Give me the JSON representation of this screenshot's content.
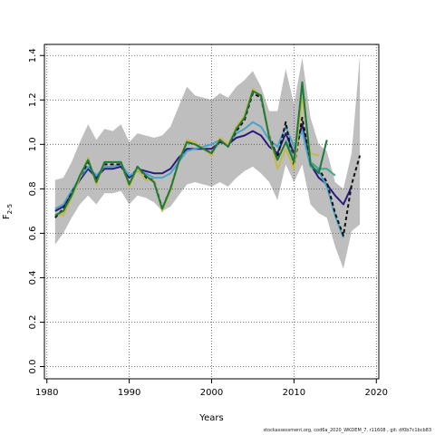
{
  "chart_data": {
    "type": "line",
    "title": "",
    "xlabel": "Years",
    "ylabel_main": "F",
    "ylabel_sub": "2-5",
    "xlim": [
      1980,
      2020
    ],
    "ylim": [
      0,
      1.4
    ],
    "xticks": [
      1980,
      1990,
      2000,
      2010,
      2020
    ],
    "yticks": [
      "0.0",
      "0.2",
      "0.4",
      "0.6",
      "0.8",
      "1.0",
      "1.2",
      "1.4"
    ],
    "grid": "dotted",
    "band": {
      "x": [
        1981,
        1982,
        1983,
        1984,
        1985,
        1986,
        1987,
        1988,
        1989,
        1990,
        1991,
        1992,
        1993,
        1994,
        1995,
        1996,
        1997,
        1998,
        1999,
        2000,
        2001,
        2002,
        2003,
        2004,
        2005,
        2006,
        2007,
        2008,
        2009,
        2010,
        2011,
        2012,
        2013,
        2014,
        2015,
        2016,
        2017,
        2018
      ],
      "upper": [
        0.84,
        0.85,
        0.92,
        1.01,
        1.09,
        1.02,
        1.07,
        1.06,
        1.09,
        1.01,
        1.05,
        1.04,
        1.03,
        1.04,
        1.08,
        1.17,
        1.26,
        1.22,
        1.21,
        1.2,
        1.23,
        1.21,
        1.26,
        1.29,
        1.33,
        1.26,
        1.15,
        1.15,
        1.34,
        1.18,
        1.39,
        1.12,
        1.0,
        0.97,
        0.83,
        0.8,
        0.96,
        1.4
      ],
      "lower": [
        0.55,
        0.6,
        0.67,
        0.73,
        0.77,
        0.73,
        0.78,
        0.78,
        0.79,
        0.73,
        0.77,
        0.76,
        0.74,
        0.7,
        0.72,
        0.77,
        0.82,
        0.83,
        0.82,
        0.81,
        0.83,
        0.81,
        0.85,
        0.88,
        0.9,
        0.87,
        0.83,
        0.75,
        0.91,
        0.83,
        0.91,
        0.73,
        0.69,
        0.67,
        0.54,
        0.44,
        0.61,
        0.64
      ]
    },
    "series": [
      {
        "color": "#2b1b80",
        "dash": "",
        "x": [
          1981,
          1982,
          1983,
          1984,
          1985,
          1986,
          1987,
          1988,
          1989,
          1990,
          1991,
          1992,
          1993,
          1994,
          1995,
          1996,
          1997,
          1998,
          1999,
          2000,
          2001,
          2002,
          2003,
          2004,
          2005,
          2006,
          2007,
          2008,
          2009,
          2010,
          2011,
          2012,
          2013,
          2014,
          2015,
          2016,
          2017
        ],
        "y": [
          0.7,
          0.72,
          0.78,
          0.84,
          0.89,
          0.85,
          0.89,
          0.89,
          0.9,
          0.85,
          0.89,
          0.88,
          0.87,
          0.87,
          0.89,
          0.94,
          0.98,
          0.98,
          0.98,
          0.98,
          1.01,
          1.0,
          1.03,
          1.04,
          1.06,
          1.04,
          0.99,
          0.96,
          1.05,
          0.96,
          1.09,
          0.91,
          0.85,
          0.82,
          0.77,
          0.73,
          0.81
        ]
      },
      {
        "color": "#4aa3c8",
        "dash": "",
        "x": [
          1981,
          1982,
          1983,
          1984,
          1985,
          1986,
          1987,
          1988,
          1989,
          1990,
          1991,
          1992,
          1993,
          1994,
          1995,
          1996,
          1997,
          1998,
          1999,
          2000,
          2001,
          2002,
          2003,
          2004,
          2005,
          2006,
          2007,
          2008,
          2009,
          2010,
          2011,
          2012,
          2013,
          2014,
          2015,
          2016
        ],
        "y": [
          0.71,
          0.73,
          0.79,
          0.85,
          0.9,
          0.86,
          0.9,
          0.9,
          0.91,
          0.86,
          0.88,
          0.87,
          0.85,
          0.85,
          0.87,
          0.92,
          0.97,
          0.98,
          0.99,
          1.0,
          1.02,
          1.0,
          1.05,
          1.07,
          1.1,
          1.08,
          1.02,
          0.99,
          1.08,
          0.99,
          1.06,
          0.9,
          0.88,
          0.81,
          0.68,
          0.58
        ]
      },
      {
        "color": "#111111",
        "dash": "4,3",
        "x": [
          1981,
          1982,
          1983,
          1984,
          1985,
          1986,
          1987,
          1988,
          1989,
          1990,
          1991,
          1992,
          1993,
          1994,
          1995,
          1996,
          1997,
          1998,
          1999,
          2000,
          2001,
          2002,
          2003,
          2004,
          2005,
          2006,
          2007,
          2008,
          2009,
          2010,
          2011,
          2012,
          2013,
          2014,
          2015,
          2016,
          2017,
          2018
        ],
        "y": [
          0.67,
          0.71,
          0.78,
          0.85,
          0.92,
          0.84,
          0.91,
          0.91,
          0.91,
          0.82,
          0.9,
          0.85,
          0.84,
          0.71,
          0.8,
          0.92,
          1.01,
          1.0,
          0.98,
          0.96,
          1.02,
          0.99,
          1.06,
          1.11,
          1.23,
          1.21,
          1.04,
          0.94,
          1.1,
          0.9,
          1.12,
          0.92,
          0.89,
          0.83,
          0.69,
          0.59,
          0.82,
          0.95
        ]
      },
      {
        "color": "#c8b84a",
        "dash": "",
        "x": [
          1981,
          1982,
          1983,
          1984,
          1985,
          1986,
          1987,
          1988,
          1989,
          1990,
          1991,
          1992,
          1993,
          1994,
          1995,
          1996,
          1997,
          1998,
          1999,
          2000,
          2001,
          2002,
          2003,
          2004,
          2005,
          2006,
          2007,
          2008,
          2009,
          2010,
          2011,
          2012,
          2013
        ],
        "y": [
          0.69,
          0.68,
          0.76,
          0.85,
          0.94,
          0.82,
          0.92,
          0.92,
          0.92,
          0.81,
          0.89,
          0.84,
          0.84,
          0.7,
          0.79,
          0.92,
          1.02,
          1.01,
          0.98,
          0.95,
          1.03,
          1.0,
          1.08,
          1.13,
          1.25,
          1.22,
          1.04,
          0.89,
          0.98,
          0.89,
          1.21,
          0.96,
          0.95
        ]
      },
      {
        "color": "#3ea88a",
        "dash": "",
        "x": [
          2009,
          2010,
          2011,
          2012,
          2013,
          2014,
          2015
        ],
        "y": [
          1.02,
          0.93,
          1.27,
          0.92,
          0.89,
          0.89,
          0.86
        ]
      },
      {
        "color": "#1f7a3a",
        "dash": "",
        "x": [
          1981,
          1982,
          1983,
          1984,
          1985,
          1986,
          1987,
          1988,
          1989,
          1990,
          1991,
          1992,
          1993,
          1994,
          1995,
          1996,
          1997,
          1998,
          1999,
          2000,
          2001,
          2002,
          2003,
          2004,
          2005,
          2006,
          2007,
          2008,
          2009,
          2010,
          2011,
          2012,
          2013,
          2014
        ],
        "y": [
          0.68,
          0.7,
          0.77,
          0.86,
          0.93,
          0.83,
          0.92,
          0.92,
          0.92,
          0.82,
          0.9,
          0.86,
          0.83,
          0.71,
          0.8,
          0.92,
          1.01,
          1.0,
          0.98,
          0.96,
          1.02,
          0.99,
          1.07,
          1.12,
          1.24,
          1.22,
          1.03,
          0.93,
          1.01,
          0.92,
          1.28,
          0.91,
          0.87,
          1.02
        ]
      }
    ]
  },
  "footer": "stockassessment.org,  cod6a_2020_WKDEM_7,  r11608 ,  git:  df0b7c1bcb83"
}
